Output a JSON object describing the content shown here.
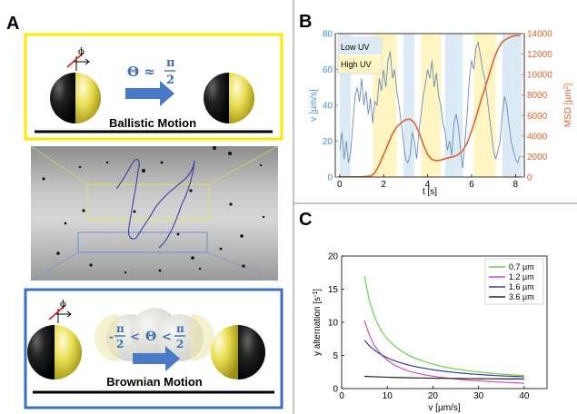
{
  "panel_labels": {
    "a": "A",
    "b": "B",
    "c": "C"
  },
  "panel_a": {
    "top_box": {
      "phi": "ϕ",
      "theta_eq": {
        "lhs": "Θ ≈",
        "num": "π",
        "den": "2"
      },
      "label": "Ballistic Motion"
    },
    "bottom_box": {
      "phi": "ϕ",
      "theta_ineq": {
        "minus": "-",
        "pi": "π",
        "two": "2",
        "lt": "<",
        "theta": "Θ"
      },
      "label": "Brownian Motion"
    },
    "colors": {
      "top_border": "#ffe800",
      "bottom_border": "#3a6fc2",
      "arrow": "#4a79c9",
      "hemisphere_dark": "#111111",
      "hemisphere_light": "#d9cc3a"
    }
  },
  "chart_data": [
    {
      "type": "line",
      "panel": "B",
      "xlabel": "t [s]",
      "ylabel_left": "v [µm/s]",
      "ylabel_right_main": "MSD [µm",
      "ylabel_right_sup": "2",
      "ylabel_right_end": "]",
      "xlim": [
        -0.2,
        8.4
      ],
      "ylim_left": [
        0,
        80
      ],
      "ylim_right": [
        0,
        14000
      ],
      "x_ticks": [
        0,
        2,
        4,
        6,
        8
      ],
      "y_ticks_left": [
        0,
        20,
        40,
        60,
        80
      ],
      "y_ticks_right": [
        0,
        2000,
        4000,
        6000,
        8000,
        10000,
        12000,
        14000
      ],
      "legend": [
        "Low UV",
        "High UV"
      ],
      "colors": {
        "left_axis": "#3f8fd1",
        "right_axis": "#e0622a",
        "low_uv": "#dceaf6",
        "high_uv": "#fff5c2",
        "velocity": "#6a8bb8"
      },
      "uv_bands": [
        {
          "start": 0.0,
          "end": 0.5,
          "level": "low"
        },
        {
          "start": 1.5,
          "end": 2.6,
          "level": "high"
        },
        {
          "start": 2.9,
          "end": 3.4,
          "level": "low"
        },
        {
          "start": 3.7,
          "end": 4.6,
          "level": "high"
        },
        {
          "start": 4.8,
          "end": 5.6,
          "level": "low"
        },
        {
          "start": 6.1,
          "end": 7.1,
          "level": "high"
        },
        {
          "start": 7.4,
          "end": 8.3,
          "level": "low"
        }
      ],
      "series": [
        {
          "axis": "left",
          "t": [
            0.0,
            0.1,
            0.2,
            0.3,
            0.4,
            0.5,
            0.6,
            0.7,
            0.8,
            0.9,
            1.0,
            1.1,
            1.2,
            1.3,
            1.4,
            1.5,
            1.6,
            1.7,
            1.8,
            1.9,
            2.0,
            2.1,
            2.2,
            2.3,
            2.4,
            2.5,
            2.6,
            2.7,
            2.8,
            2.9,
            3.0,
            3.1,
            3.2,
            3.3,
            3.4,
            3.5,
            3.6,
            3.7,
            3.8,
            3.9,
            4.0,
            4.1,
            4.2,
            4.3,
            4.4,
            4.5,
            4.6,
            4.7,
            4.8,
            4.9,
            5.0,
            5.1,
            5.2,
            5.3,
            5.4,
            5.5,
            5.6,
            5.7,
            5.8,
            5.9,
            6.0,
            6.1,
            6.2,
            6.3,
            6.4,
            6.5,
            6.6,
            6.7,
            6.8,
            6.9,
            7.0,
            7.1,
            7.2,
            7.3,
            7.4,
            7.5,
            7.6,
            7.7,
            7.8,
            7.9,
            8.0,
            8.1,
            8.2
          ],
          "v": [
            15,
            25,
            10,
            20,
            8,
            14,
            30,
            45,
            50,
            42,
            55,
            40,
            48,
            35,
            44,
            30,
            42,
            40,
            55,
            48,
            60,
            50,
            65,
            70,
            55,
            60,
            48,
            40,
            30,
            20,
            10,
            8,
            12,
            25,
            20,
            10,
            25,
            35,
            45,
            52,
            60,
            55,
            65,
            50,
            58,
            45,
            40,
            30,
            25,
            15,
            20,
            12,
            30,
            35,
            28,
            15,
            5,
            20,
            35,
            55,
            65,
            60,
            72,
            75,
            68,
            60,
            55,
            45,
            35,
            25,
            15,
            10,
            15,
            20,
            35,
            45,
            40,
            30,
            20,
            15,
            10,
            8,
            12
          ]
        },
        {
          "axis": "right",
          "t": [
            0.0,
            0.2,
            0.4,
            0.6,
            0.8,
            1.0,
            1.2,
            1.4,
            1.6,
            1.8,
            2.0,
            2.2,
            2.4,
            2.6,
            2.8,
            3.0,
            3.2,
            3.4,
            3.6,
            3.8,
            4.0,
            4.2,
            4.4,
            4.6,
            4.8,
            5.0,
            5.2,
            5.4,
            5.6,
            5.8,
            6.0,
            6.2,
            6.4,
            6.6,
            6.8,
            7.0,
            7.2,
            7.4,
            7.6,
            7.8,
            8.0,
            8.2
          ],
          "msd": [
            0,
            5,
            10,
            15,
            20,
            30,
            50,
            100,
            400,
            1200,
            2200,
            3200,
            4200,
            4900,
            5300,
            5600,
            5650,
            5300,
            4400,
            3200,
            2200,
            1700,
            1600,
            1650,
            1800,
            1900,
            2000,
            2200,
            2600,
            3300,
            4500,
            5800,
            7300,
            8600,
            10000,
            11400,
            12500,
            13200,
            13500,
            13700,
            13800,
            13800
          ]
        }
      ]
    },
    {
      "type": "line",
      "panel": "C",
      "xlabel": "v [µm/s]",
      "ylabel": "y alternation [s",
      "ylabel_sup": "-1",
      "ylabel_end": "]",
      "xlim": [
        0,
        45
      ],
      "ylim": [
        0,
        20
      ],
      "x_ticks": [
        0,
        10,
        20,
        30,
        40
      ],
      "y_ticks": [
        0,
        5,
        10,
        15,
        20
      ],
      "x": [
        5,
        6,
        7,
        8,
        9,
        10,
        11,
        12,
        13,
        14,
        15,
        16,
        17,
        18,
        19,
        20,
        21,
        22,
        23,
        24,
        25,
        26,
        27,
        28,
        29,
        30,
        31,
        32,
        33,
        34,
        35,
        36,
        37,
        38,
        39,
        40
      ],
      "series": [
        {
          "name": "0.7 µm",
          "color": "#6ccf4c",
          "values": [
            17.0,
            13.5,
            11.2,
            9.6,
            8.4,
            7.5,
            6.8,
            6.2,
            5.7,
            5.3,
            4.9,
            4.6,
            4.35,
            4.1,
            3.9,
            3.7,
            3.5,
            3.35,
            3.2,
            3.08,
            2.96,
            2.85,
            2.75,
            2.66,
            2.58,
            2.5,
            2.43,
            2.36,
            2.3,
            2.24,
            2.19,
            2.13,
            2.09,
            2.04,
            2.0,
            1.96
          ]
        },
        {
          "name": "1.2 µm",
          "color": "#d94ab3",
          "values": [
            10.3,
            8.2,
            6.7,
            5.7,
            4.9,
            4.3,
            3.8,
            3.4,
            3.1,
            2.8,
            2.6,
            2.4,
            2.25,
            2.1,
            1.98,
            1.87,
            1.77,
            1.68,
            1.6,
            1.52,
            1.45,
            1.39,
            1.33,
            1.27,
            1.22,
            1.17,
            1.12,
            1.08,
            1.04,
            1.0,
            0.97,
            0.93,
            0.9,
            0.87,
            0.84,
            0.81
          ]
        },
        {
          "name": "1.6 µm",
          "color": "#3b3b9e",
          "values": [
            7.3,
            6.5,
            5.9,
            5.4,
            5.0,
            4.65,
            4.35,
            4.1,
            3.88,
            3.68,
            3.5,
            3.34,
            3.2,
            3.07,
            2.95,
            2.84,
            2.74,
            2.65,
            2.57,
            2.49,
            2.42,
            2.35,
            2.29,
            2.23,
            2.18,
            2.13,
            2.08,
            2.04,
            2.0,
            1.96,
            1.92,
            1.89,
            1.86,
            1.83,
            1.8,
            1.77
          ]
        },
        {
          "name": "3.6 µm",
          "color": "#222222",
          "values": [
            1.85,
            1.82,
            1.79,
            1.76,
            1.74,
            1.72,
            1.7,
            1.68,
            1.66,
            1.64,
            1.63,
            1.61,
            1.6,
            1.59,
            1.58,
            1.57,
            1.56,
            1.55,
            1.54,
            1.53,
            1.52,
            1.52,
            1.51,
            1.5,
            1.5,
            1.49,
            1.49,
            1.48,
            1.48,
            1.47,
            1.47,
            1.46,
            1.46,
            1.46,
            1.45,
            1.45
          ]
        }
      ]
    }
  ]
}
